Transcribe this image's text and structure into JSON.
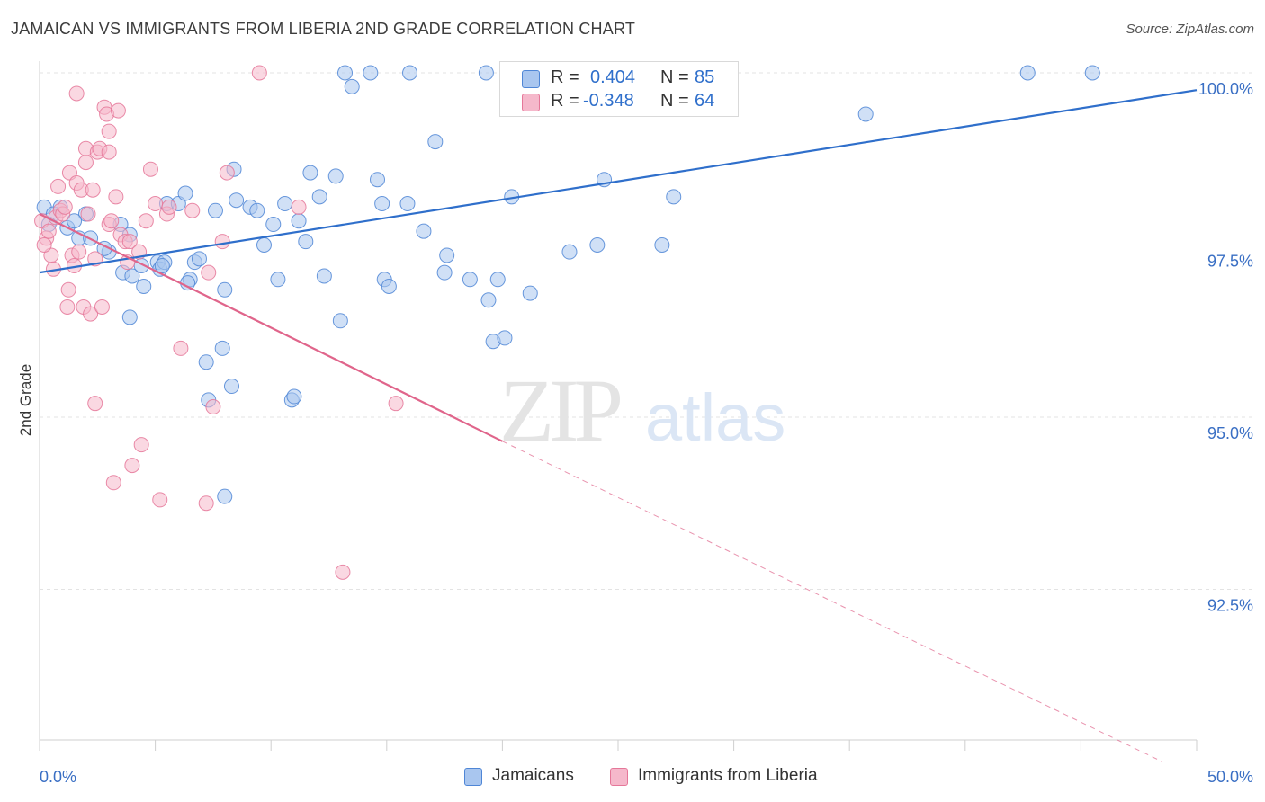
{
  "header": {
    "title": "JAMAICAN VS IMMIGRANTS FROM LIBERIA 2ND GRADE CORRELATION CHART",
    "source": "Source: ZipAtlas.com"
  },
  "colors": {
    "blue_fill": "#a9c6ef",
    "blue_stroke": "#4f86d6",
    "blue_line": "#2f6fcb",
    "pink_fill": "#f5b8cb",
    "pink_stroke": "#e57799",
    "pink_line": "#e0658b",
    "grid": "#e3e3e3",
    "tick_text": "#3a6fc4"
  },
  "legend": {
    "rows": [
      {
        "r_label": "R =",
        "r_value": "0.404",
        "n_label": "N =",
        "n_value": "85",
        "color": "#a9c6ef"
      },
      {
        "r_label": "R =",
        "r_value": "-0.348",
        "n_label": "N =",
        "n_value": "64",
        "color": "#f5b8cb"
      }
    ]
  },
  "bottom_legend": [
    {
      "label": "Jamaicans"
    },
    {
      "label": "Immigrants from Liberia"
    }
  ],
  "watermark": {
    "zip": "ZIP",
    "atlas": "atlas"
  },
  "chart_data": {
    "type": "scatter",
    "title": "JAMAICAN VS IMMIGRANTS FROM LIBERIA 2ND GRADE CORRELATION CHART",
    "xlabel": "",
    "ylabel": "2nd Grade",
    "xlim": [
      0,
      50
    ],
    "ylim": [
      90,
      100.4
    ],
    "x_tick_labels": [
      {
        "value": 0,
        "label": "0.0%"
      },
      {
        "value": 50,
        "label": "50.0%"
      }
    ],
    "y_tick_labels": [
      {
        "value": 100,
        "label": "100.0%"
      },
      {
        "value": 97.5,
        "label": "97.5%"
      },
      {
        "value": 95,
        "label": "95.0%"
      },
      {
        "value": 92.5,
        "label": "92.5%"
      }
    ],
    "grid": true,
    "legend_position": "top-center",
    "series": [
      {
        "name": "Jamaicans",
        "color": "#a9c6ef",
        "trend": {
          "x": [
            0,
            50
          ],
          "y": [
            97.1,
            99.75
          ],
          "style": "solid"
        },
        "points": [
          [
            0.2,
            98.05
          ],
          [
            0.6,
            97.95
          ],
          [
            0.4,
            97.8
          ],
          [
            0.9,
            98.05
          ],
          [
            1.2,
            97.75
          ],
          [
            1.7,
            97.6
          ],
          [
            2.0,
            97.95
          ],
          [
            2.2,
            97.6
          ],
          [
            1.5,
            97.85
          ],
          [
            3.0,
            97.4
          ],
          [
            2.8,
            97.45
          ],
          [
            3.5,
            97.8
          ],
          [
            3.9,
            97.65
          ],
          [
            3.6,
            97.1
          ],
          [
            4.0,
            97.05
          ],
          [
            4.4,
            97.2
          ],
          [
            4.5,
            96.9
          ],
          [
            5.1,
            97.25
          ],
          [
            5.2,
            97.15
          ],
          [
            5.5,
            98.1
          ],
          [
            5.4,
            97.25
          ],
          [
            5.3,
            97.2
          ],
          [
            6.0,
            98.1
          ],
          [
            6.3,
            98.25
          ],
          [
            6.5,
            97.0
          ],
          [
            6.4,
            96.95
          ],
          [
            6.7,
            97.25
          ],
          [
            6.9,
            97.3
          ],
          [
            7.2,
            95.8
          ],
          [
            7.3,
            95.25
          ],
          [
            7.9,
            96.0
          ],
          [
            7.6,
            98.0
          ],
          [
            8.0,
            93.85
          ],
          [
            8.4,
            98.6
          ],
          [
            8.5,
            98.15
          ],
          [
            8.0,
            96.85
          ],
          [
            8.3,
            95.45
          ],
          [
            9.1,
            98.05
          ],
          [
            9.4,
            98.0
          ],
          [
            9.7,
            97.5
          ],
          [
            10.1,
            97.8
          ],
          [
            10.3,
            97.0
          ],
          [
            10.6,
            98.1
          ],
          [
            10.9,
            95.25
          ],
          [
            11.0,
            95.3
          ],
          [
            11.2,
            97.85
          ],
          [
            11.5,
            97.55
          ],
          [
            11.7,
            98.55
          ],
          [
            12.1,
            98.2
          ],
          [
            12.3,
            97.05
          ],
          [
            12.8,
            98.5
          ],
          [
            13.0,
            96.4
          ],
          [
            13.2,
            100.0
          ],
          [
            13.5,
            99.8
          ],
          [
            14.3,
            100.0
          ],
          [
            14.6,
            98.45
          ],
          [
            14.8,
            98.1
          ],
          [
            14.9,
            97.0
          ],
          [
            15.1,
            96.9
          ],
          [
            15.9,
            98.1
          ],
          [
            16.0,
            100.0
          ],
          [
            16.6,
            97.7
          ],
          [
            17.1,
            99.0
          ],
          [
            17.6,
            97.35
          ],
          [
            17.5,
            97.1
          ],
          [
            18.6,
            97.0
          ],
          [
            19.3,
            100.0
          ],
          [
            19.4,
            96.7
          ],
          [
            19.6,
            96.1
          ],
          [
            19.8,
            97.0
          ],
          [
            20.1,
            96.15
          ],
          [
            20.4,
            98.2
          ],
          [
            21.2,
            96.8
          ],
          [
            22.9,
            97.4
          ],
          [
            24.1,
            97.5
          ],
          [
            24.4,
            98.45
          ],
          [
            26.5,
            100.0
          ],
          [
            26.9,
            97.5
          ],
          [
            27.0,
            100.0
          ],
          [
            27.4,
            98.2
          ],
          [
            28.2,
            100.0
          ],
          [
            35.7,
            99.4
          ],
          [
            42.7,
            100.0
          ],
          [
            45.5,
            100.0
          ],
          [
            3.9,
            96.45
          ]
        ]
      },
      {
        "name": "Immigrants from Liberia",
        "color": "#f5b8cb",
        "trend": {
          "x": [
            0,
            20
          ],
          "y": [
            97.95,
            94.65
          ],
          "style": "solid"
        },
        "trend_extension": {
          "x": [
            20,
            48.5
          ],
          "y": [
            94.65,
            90.0
          ],
          "style": "dashed"
        },
        "points": [
          [
            0.1,
            97.85
          ],
          [
            0.3,
            97.6
          ],
          [
            0.4,
            97.7
          ],
          [
            0.5,
            97.35
          ],
          [
            0.6,
            97.15
          ],
          [
            0.7,
            97.9
          ],
          [
            0.8,
            98.35
          ],
          [
            0.9,
            98.0
          ],
          [
            1.0,
            97.95
          ],
          [
            1.1,
            98.05
          ],
          [
            1.2,
            96.6
          ],
          [
            1.25,
            96.85
          ],
          [
            1.3,
            98.55
          ],
          [
            1.4,
            97.35
          ],
          [
            1.5,
            97.2
          ],
          [
            1.6,
            98.4
          ],
          [
            1.7,
            97.4
          ],
          [
            1.8,
            98.3
          ],
          [
            1.6,
            99.7
          ],
          [
            1.9,
            96.6
          ],
          [
            2.0,
            98.7
          ],
          [
            2.0,
            98.9
          ],
          [
            2.2,
            96.5
          ],
          [
            2.3,
            98.3
          ],
          [
            2.4,
            97.3
          ],
          [
            2.4,
            95.2
          ],
          [
            2.5,
            98.85
          ],
          [
            2.6,
            98.9
          ],
          [
            2.7,
            96.6
          ],
          [
            2.8,
            99.5
          ],
          [
            2.9,
            99.4
          ],
          [
            3.0,
            98.85
          ],
          [
            3.0,
            99.15
          ],
          [
            3.0,
            97.8
          ],
          [
            3.1,
            97.85
          ],
          [
            3.2,
            94.05
          ],
          [
            3.3,
            98.2
          ],
          [
            3.4,
            99.45
          ],
          [
            3.5,
            97.65
          ],
          [
            3.7,
            97.55
          ],
          [
            3.8,
            97.25
          ],
          [
            3.9,
            97.55
          ],
          [
            4.0,
            94.3
          ],
          [
            4.3,
            97.4
          ],
          [
            4.4,
            94.6
          ],
          [
            4.6,
            97.85
          ],
          [
            4.8,
            98.6
          ],
          [
            5.0,
            98.1
          ],
          [
            5.2,
            93.8
          ],
          [
            5.5,
            97.95
          ],
          [
            5.6,
            98.05
          ],
          [
            6.1,
            96.0
          ],
          [
            6.6,
            98.0
          ],
          [
            7.2,
            93.75
          ],
          [
            7.3,
            97.1
          ],
          [
            7.5,
            95.15
          ],
          [
            7.9,
            97.55
          ],
          [
            8.1,
            98.55
          ],
          [
            9.5,
            100.0
          ],
          [
            11.2,
            98.05
          ],
          [
            13.1,
            92.75
          ],
          [
            15.4,
            95.2
          ],
          [
            0.2,
            97.5
          ],
          [
            2.1,
            97.95
          ]
        ]
      }
    ]
  }
}
